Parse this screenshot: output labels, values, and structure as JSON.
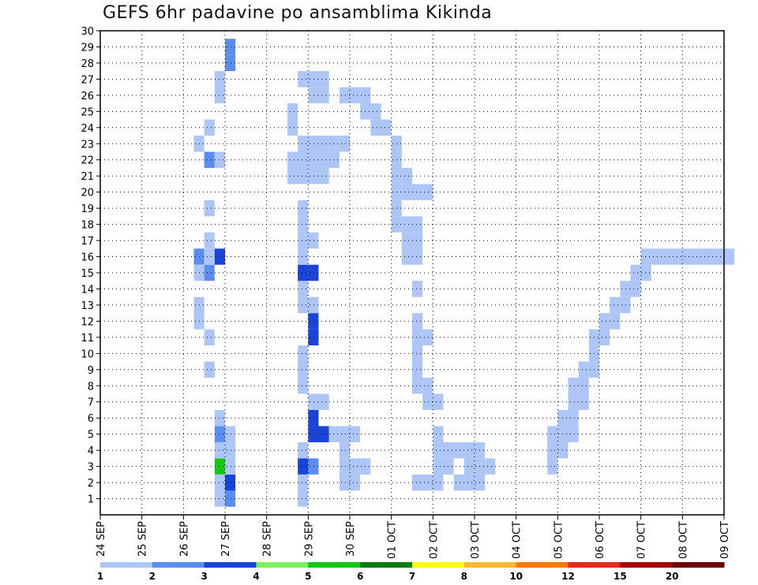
{
  "chart_data": {
    "type": "heatmap",
    "title": "GEFS 6hr padavine po ansamblima Kikinda",
    "x_ticks": [
      "24 SEP",
      "25 SEP",
      "26 SEP",
      "27 SEP",
      "28 SEP",
      "29 SEP",
      "30 SEP",
      "01 OCT",
      "02 OCT",
      "03 OCT",
      "04 OCT",
      "05 OCT",
      "06 OCT",
      "07 OCT",
      "08 OCT",
      "09 OCT"
    ],
    "x_step_hours": 6,
    "y_ticks": [
      1,
      2,
      3,
      4,
      5,
      6,
      7,
      8,
      9,
      10,
      11,
      12,
      13,
      14,
      15,
      16,
      17,
      18,
      19,
      20,
      21,
      22,
      23,
      24,
      25,
      26,
      27,
      28,
      29,
      30
    ],
    "y_range": [
      0,
      30
    ],
    "grid": true,
    "legend_placement": "bottom",
    "color_scale": {
      "labels": [
        "1",
        "2",
        "3",
        "4",
        "5",
        "6",
        "7",
        "8",
        "10",
        "12",
        "15",
        "20"
      ],
      "colors": [
        "#aec6f6",
        "#5b8def",
        "#1a43d8",
        "#7df060",
        "#12c812",
        "#0a7a0a",
        "#ffff00",
        "#ffb833",
        "#ff7a00",
        "#e8281a",
        "#a80000",
        "#6a0000"
      ]
    },
    "cells": [
      [
        11,
        1,
        1
      ],
      [
        11,
        2,
        1
      ],
      [
        11,
        3,
        5
      ],
      [
        11,
        4,
        1
      ],
      [
        11,
        5,
        2
      ],
      [
        12,
        1,
        2
      ],
      [
        12,
        2,
        3
      ],
      [
        12,
        3,
        1
      ],
      [
        12,
        4,
        1
      ],
      [
        12,
        5,
        1
      ],
      [
        11,
        6,
        1
      ],
      [
        12,
        28,
        2
      ],
      [
        12,
        29,
        2
      ],
      [
        11,
        26,
        1
      ],
      [
        11,
        27,
        1
      ],
      [
        10,
        24,
        1
      ],
      [
        10,
        22,
        2
      ],
      [
        11,
        22,
        1
      ],
      [
        10,
        19,
        1
      ],
      [
        10,
        17,
        1
      ],
      [
        9,
        16,
        2
      ],
      [
        10,
        16,
        1
      ],
      [
        11,
        16,
        3
      ],
      [
        9,
        15,
        1
      ],
      [
        10,
        15,
        2
      ],
      [
        9,
        13,
        1
      ],
      [
        9,
        12,
        1
      ],
      [
        10,
        11,
        1
      ],
      [
        10,
        9,
        1
      ],
      [
        9,
        23,
        1
      ],
      [
        19,
        1,
        1
      ],
      [
        19,
        2,
        1
      ],
      [
        19,
        3,
        3
      ],
      [
        20,
        3,
        2
      ],
      [
        19,
        4,
        1
      ],
      [
        20,
        5,
        3
      ],
      [
        21,
        5,
        3
      ],
      [
        20,
        6,
        3
      ],
      [
        20,
        7,
        1
      ],
      [
        21,
        7,
        1
      ],
      [
        19,
        8,
        1
      ],
      [
        19,
        9,
        1
      ],
      [
        19,
        10,
        1
      ],
      [
        20,
        11,
        3
      ],
      [
        20,
        12,
        3
      ],
      [
        19,
        13,
        1
      ],
      [
        20,
        13,
        1
      ],
      [
        19,
        14,
        1
      ],
      [
        19,
        15,
        3
      ],
      [
        20,
        15,
        3
      ],
      [
        19,
        16,
        1
      ],
      [
        19,
        17,
        1
      ],
      [
        20,
        17,
        1
      ],
      [
        19,
        18,
        1
      ],
      [
        19,
        19,
        1
      ],
      [
        18,
        21,
        1
      ],
      [
        19,
        21,
        1
      ],
      [
        20,
        21,
        1
      ],
      [
        21,
        21,
        1
      ],
      [
        19,
        22,
        1
      ],
      [
        20,
        22,
        1
      ],
      [
        21,
        22,
        1
      ],
      [
        22,
        22,
        1
      ],
      [
        18,
        22,
        1
      ],
      [
        19,
        23,
        1
      ],
      [
        20,
        23,
        1
      ],
      [
        21,
        23,
        1
      ],
      [
        22,
        23,
        1
      ],
      [
        23,
        23,
        1
      ],
      [
        18,
        24,
        1
      ],
      [
        18,
        25,
        1
      ],
      [
        20,
        26,
        1
      ],
      [
        21,
        26,
        1
      ],
      [
        19,
        27,
        1
      ],
      [
        20,
        27,
        1
      ],
      [
        21,
        27,
        1
      ],
      [
        23,
        26,
        1
      ],
      [
        24,
        26,
        1
      ],
      [
        25,
        26,
        1
      ],
      [
        25,
        25,
        1
      ],
      [
        26,
        25,
        1
      ],
      [
        26,
        24,
        1
      ],
      [
        27,
        24,
        1
      ],
      [
        28,
        23,
        1
      ],
      [
        28,
        22,
        1
      ],
      [
        28,
        21,
        1
      ],
      [
        29,
        21,
        1
      ],
      [
        28,
        20,
        1
      ],
      [
        29,
        20,
        1
      ],
      [
        30,
        20,
        1
      ],
      [
        31,
        20,
        1
      ],
      [
        28,
        19,
        1
      ],
      [
        28,
        18,
        1
      ],
      [
        29,
        18,
        1
      ],
      [
        30,
        18,
        1
      ],
      [
        29,
        17,
        1
      ],
      [
        30,
        17,
        1
      ],
      [
        30,
        16,
        1
      ],
      [
        29,
        16,
        1
      ],
      [
        30,
        14,
        1
      ],
      [
        30,
        12,
        1
      ],
      [
        30,
        11,
        1
      ],
      [
        31,
        11,
        1
      ],
      [
        30,
        10,
        1
      ],
      [
        30,
        9,
        1
      ],
      [
        31,
        8,
        1
      ],
      [
        30,
        8,
        1
      ],
      [
        31,
        7,
        1
      ],
      [
        32,
        7,
        1
      ],
      [
        32,
        5,
        1
      ],
      [
        32,
        4,
        1
      ],
      [
        22,
        5,
        1
      ],
      [
        23,
        5,
        1
      ],
      [
        24,
        5,
        1
      ],
      [
        23,
        4,
        1
      ],
      [
        24,
        3,
        1
      ],
      [
        25,
        3,
        1
      ],
      [
        23,
        3,
        1
      ],
      [
        23,
        2,
        1
      ],
      [
        24,
        2,
        1
      ],
      [
        34,
        2,
        1
      ],
      [
        35,
        2,
        1
      ],
      [
        36,
        2,
        1
      ],
      [
        35,
        3,
        1
      ],
      [
        36,
        3,
        1
      ],
      [
        37,
        3,
        1
      ],
      [
        34,
        4,
        1
      ],
      [
        35,
        4,
        1
      ],
      [
        36,
        4,
        1
      ],
      [
        33,
        3,
        1
      ],
      [
        33,
        4,
        1
      ],
      [
        32,
        3,
        1
      ],
      [
        32,
        2,
        1
      ],
      [
        31,
        2,
        1
      ],
      [
        30,
        2,
        1
      ],
      [
        43,
        3,
        1
      ],
      [
        43,
        4,
        1
      ],
      [
        44,
        4,
        1
      ],
      [
        43,
        5,
        1
      ],
      [
        44,
        5,
        1
      ],
      [
        45,
        5,
        1
      ],
      [
        44,
        6,
        1
      ],
      [
        45,
        6,
        1
      ],
      [
        45,
        7,
        1
      ],
      [
        46,
        7,
        1
      ],
      [
        45,
        8,
        1
      ],
      [
        46,
        8,
        1
      ],
      [
        46,
        9,
        1
      ],
      [
        47,
        9,
        1
      ],
      [
        47,
        10,
        1
      ],
      [
        47,
        11,
        1
      ],
      [
        48,
        11,
        1
      ],
      [
        48,
        12,
        1
      ],
      [
        49,
        12,
        1
      ],
      [
        49,
        13,
        1
      ],
      [
        50,
        13,
        1
      ],
      [
        50,
        14,
        1
      ],
      [
        51,
        14,
        1
      ],
      [
        51,
        15,
        1
      ],
      [
        52,
        15,
        1
      ],
      [
        52,
        16,
        1
      ],
      [
        53,
        16,
        1
      ],
      [
        54,
        16,
        1
      ],
      [
        55,
        16,
        1
      ],
      [
        56,
        16,
        1
      ],
      [
        57,
        16,
        1
      ],
      [
        58,
        16,
        1
      ],
      [
        59,
        16,
        1
      ],
      [
        60,
        16,
        1
      ]
    ]
  }
}
